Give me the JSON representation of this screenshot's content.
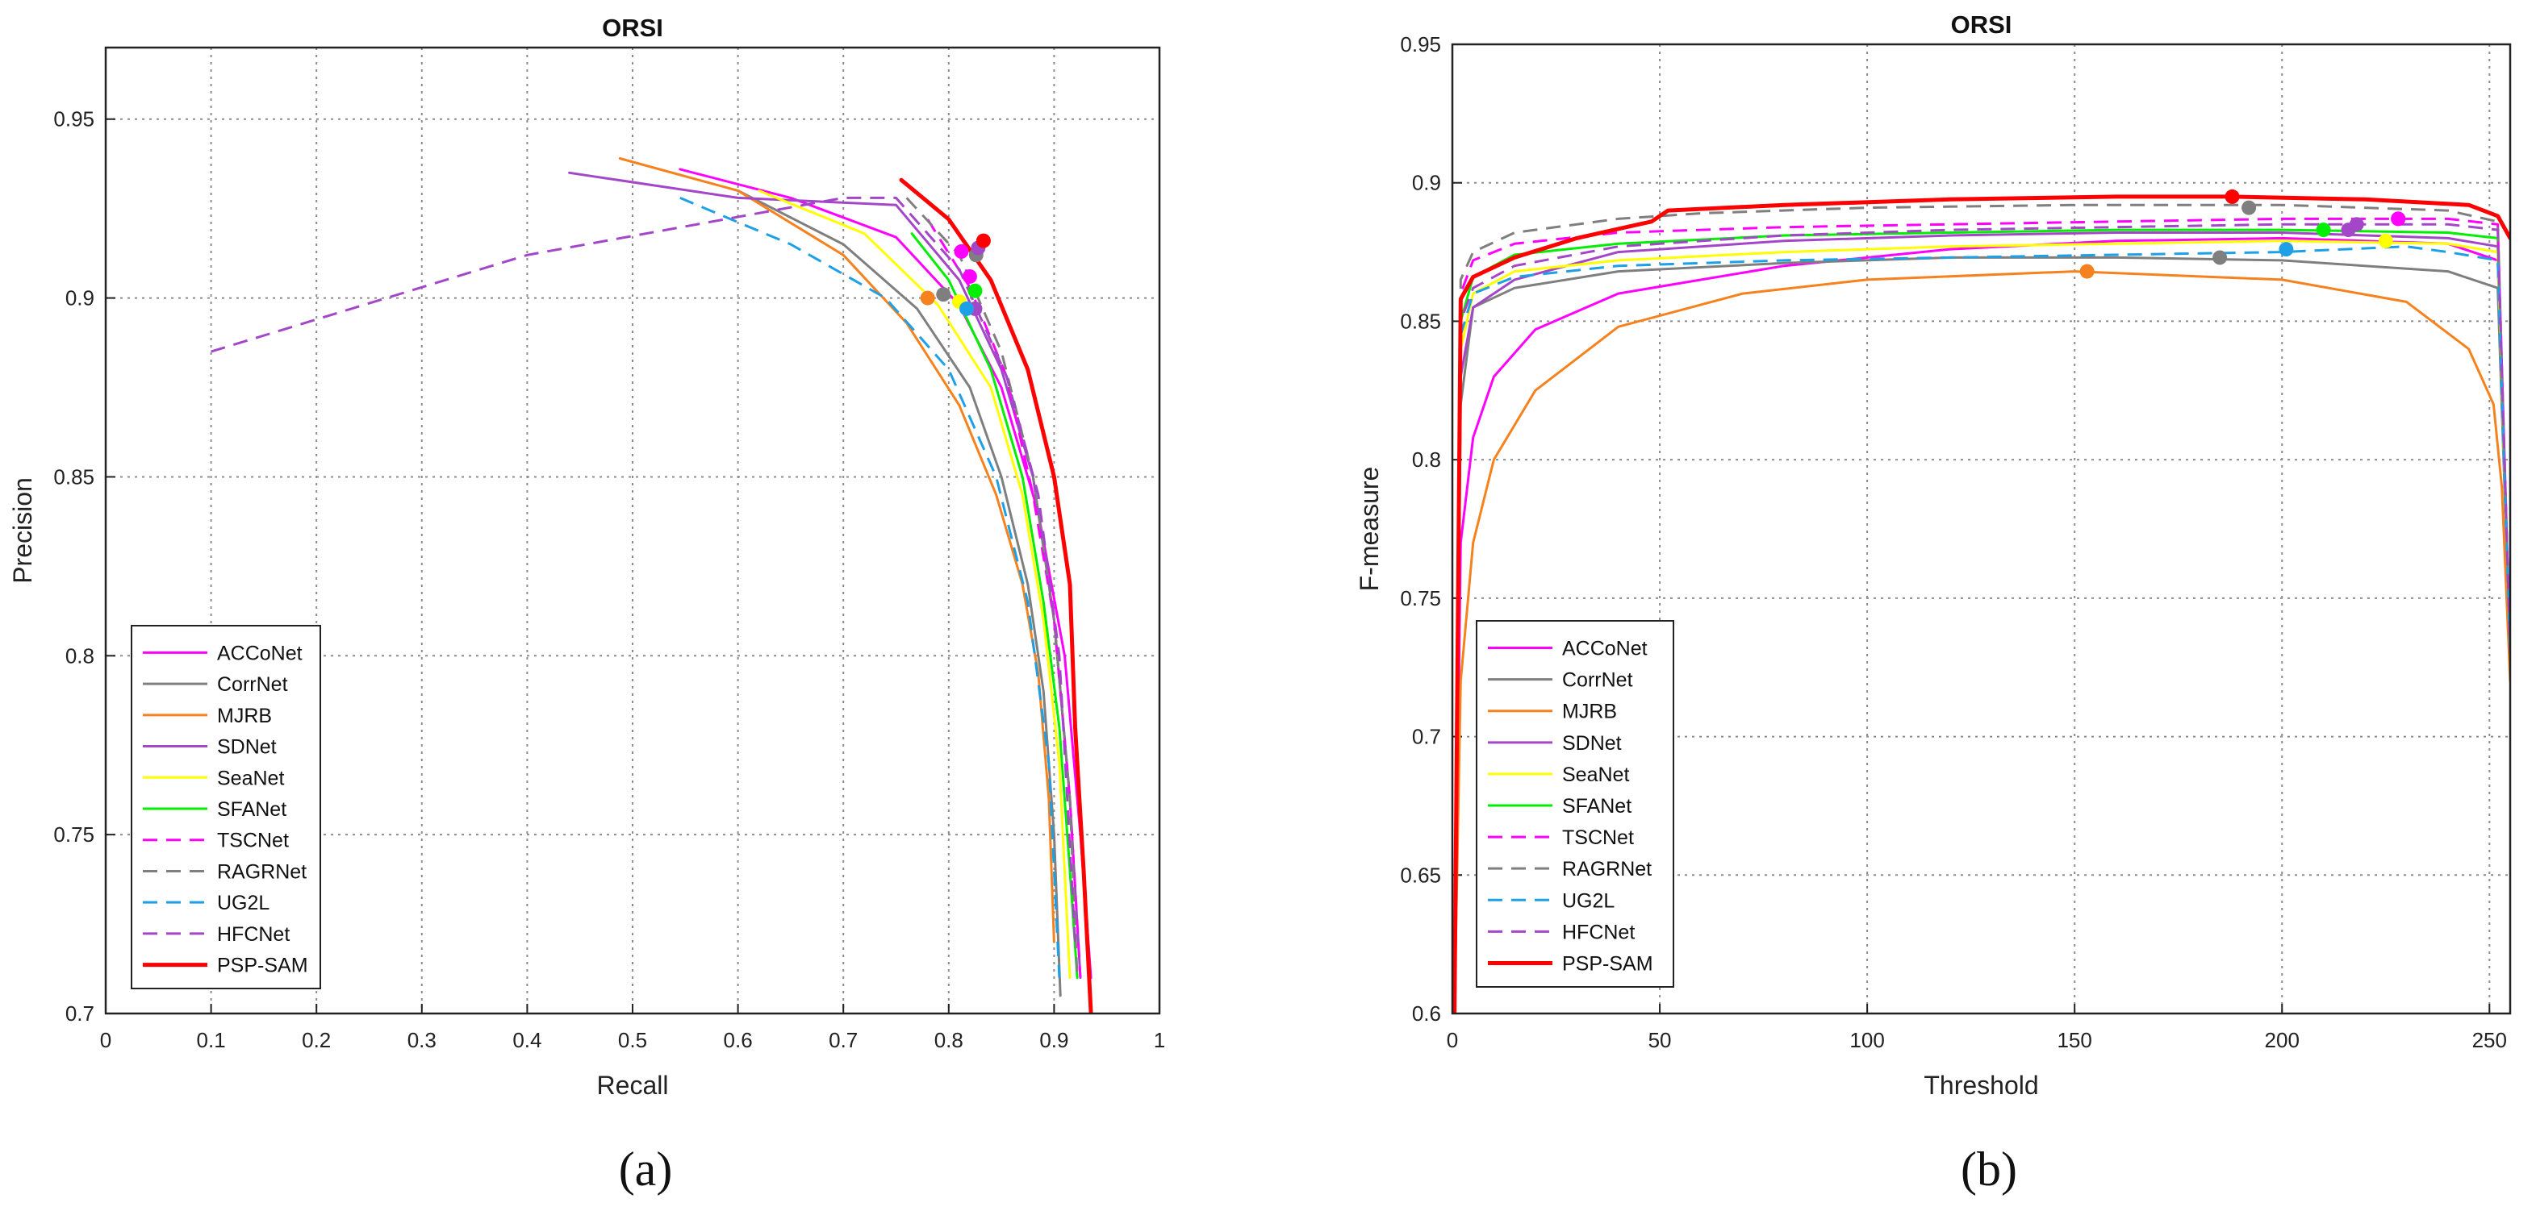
{
  "chart_data": [
    {
      "type": "line",
      "panel_label": "(a)",
      "title": "ORSI",
      "xlabel": "Recall",
      "ylabel": "Precision",
      "xlim": [
        0,
        1
      ],
      "ylim": [
        0.7,
        0.97
      ],
      "xticks": [
        "0",
        "0.1",
        "0.2",
        "0.3",
        "0.4",
        "0.5",
        "0.6",
        "0.7",
        "0.8",
        "0.9",
        "1"
      ],
      "yticks": [
        "0.7",
        "0.75",
        "0.8",
        "0.85",
        "0.9",
        "0.95"
      ],
      "grid": true,
      "legend_position": "bottom-left",
      "series": [
        {
          "name": "ACCoNet",
          "color": "#ff00ff",
          "dash": "solid",
          "width": 3,
          "x": [
            0.545,
            0.65,
            0.75,
            0.81,
            0.85,
            0.885,
            0.91,
            0.925,
            0.935
          ],
          "y": [
            0.936,
            0.928,
            0.917,
            0.898,
            0.875,
            0.84,
            0.8,
            0.75,
            0.71
          ],
          "marker": [
            0.812,
            0.913
          ]
        },
        {
          "name": "CorrNet",
          "color": "#7f7f7f",
          "dash": "solid",
          "width": 3,
          "x": [
            0.6,
            0.7,
            0.77,
            0.82,
            0.85,
            0.875,
            0.89,
            0.9,
            0.906
          ],
          "y": [
            0.93,
            0.915,
            0.897,
            0.875,
            0.85,
            0.82,
            0.79,
            0.75,
            0.705
          ],
          "marker": [
            0.795,
            0.901
          ]
        },
        {
          "name": "MJRB",
          "color": "#f5821f",
          "dash": "solid",
          "width": 3,
          "x": [
            0.488,
            0.6,
            0.7,
            0.76,
            0.81,
            0.845,
            0.87,
            0.885,
            0.895,
            0.9
          ],
          "y": [
            0.939,
            0.93,
            0.912,
            0.893,
            0.87,
            0.845,
            0.82,
            0.795,
            0.76,
            0.72
          ],
          "marker": [
            0.78,
            0.9
          ]
        },
        {
          "name": "SDNet",
          "color": "#a347c8",
          "dash": "solid",
          "width": 3,
          "x": [
            0.44,
            0.6,
            0.75,
            0.81,
            0.85,
            0.88,
            0.9,
            0.915,
            0.925
          ],
          "y": [
            0.935,
            0.928,
            0.926,
            0.905,
            0.88,
            0.85,
            0.81,
            0.76,
            0.71
          ],
          "marker": [
            0.825,
            0.897
          ]
        },
        {
          "name": "SeaNet",
          "color": "#ffff00",
          "dash": "solid",
          "width": 3,
          "x": [
            0.62,
            0.72,
            0.79,
            0.84,
            0.87,
            0.89,
            0.905,
            0.915
          ],
          "y": [
            0.93,
            0.918,
            0.898,
            0.875,
            0.845,
            0.81,
            0.77,
            0.71
          ],
          "marker": [
            0.81,
            0.899
          ]
        },
        {
          "name": "SFANet",
          "color": "#00ee00",
          "dash": "solid",
          "width": 3,
          "x": [
            0.765,
            0.8,
            0.84,
            0.87,
            0.89,
            0.905,
            0.915,
            0.922
          ],
          "y": [
            0.918,
            0.905,
            0.88,
            0.85,
            0.815,
            0.78,
            0.74,
            0.71
          ],
          "marker": [
            0.825,
            0.902
          ]
        },
        {
          "name": "TSCNet",
          "color": "#ff00ff",
          "dash": "dashed",
          "width": 3,
          "x": [
            0.78,
            0.82,
            0.855,
            0.88,
            0.9,
            0.915,
            0.925
          ],
          "y": [
            0.922,
            0.903,
            0.878,
            0.845,
            0.81,
            0.76,
            0.71
          ],
          "marker": [
            0.82,
            0.906
          ]
        },
        {
          "name": "RAGRNet",
          "color": "#7f7f7f",
          "dash": "dashed",
          "width": 3,
          "x": [
            0.76,
            0.81,
            0.85,
            0.88,
            0.9,
            0.915,
            0.922
          ],
          "y": [
            0.928,
            0.912,
            0.885,
            0.85,
            0.81,
            0.76,
            0.71
          ],
          "marker": [
            0.826,
            0.912
          ]
        },
        {
          "name": "UG2L",
          "color": "#1ea0e6",
          "dash": "dashed",
          "width": 3,
          "x": [
            0.545,
            0.65,
            0.74,
            0.8,
            0.845,
            0.875,
            0.895,
            0.905
          ],
          "y": [
            0.928,
            0.915,
            0.9,
            0.88,
            0.85,
            0.815,
            0.77,
            0.71
          ],
          "marker": [
            0.817,
            0.897
          ]
        },
        {
          "name": "HFCNet",
          "color": "#a347c8",
          "dash": "dashed",
          "width": 3,
          "x": [
            0.1,
            0.4,
            0.7,
            0.75,
            0.81,
            0.855,
            0.885,
            0.905,
            0.92
          ],
          "y": [
            0.885,
            0.912,
            0.928,
            0.928,
            0.908,
            0.878,
            0.845,
            0.8,
            0.72
          ],
          "marker": [
            0.828,
            0.914
          ]
        },
        {
          "name": "PSP-SAM",
          "color": "#ff0000",
          "dash": "solid",
          "width": 5,
          "x": [
            0.755,
            0.8,
            0.84,
            0.875,
            0.9,
            0.915,
            0.92,
            0.928,
            0.935
          ],
          "y": [
            0.933,
            0.922,
            0.905,
            0.88,
            0.85,
            0.82,
            0.78,
            0.74,
            0.7
          ],
          "marker": [
            0.833,
            0.916
          ]
        }
      ]
    },
    {
      "type": "line",
      "panel_label": "(b)",
      "title": "ORSI",
      "xlabel": "Threshold",
      "ylabel": "F-measure",
      "xlim": [
        0,
        255
      ],
      "ylim": [
        0.6,
        0.95
      ],
      "xticks": [
        "0",
        "50",
        "100",
        "150",
        "200",
        "250"
      ],
      "yticks": [
        "0.6",
        "0.65",
        "0.7",
        "0.75",
        "0.8",
        "0.85",
        "0.9",
        "0.95"
      ],
      "grid": true,
      "legend_position": "bottom-left",
      "series": [
        {
          "name": "ACCoNet",
          "color": "#ff00ff",
          "dash": "solid",
          "width": 3,
          "x": [
            0.5,
            2,
            5,
            10,
            20,
            40,
            80,
            120,
            160,
            200,
            240,
            252,
            255
          ],
          "y": [
            0.6,
            0.77,
            0.808,
            0.83,
            0.847,
            0.86,
            0.87,
            0.876,
            0.879,
            0.88,
            0.878,
            0.872,
            0.73
          ],
          "marker": [
            228,
            0.887
          ]
        },
        {
          "name": "CorrNet",
          "color": "#7f7f7f",
          "dash": "solid",
          "width": 3,
          "x": [
            0.5,
            2,
            5,
            15,
            40,
            80,
            120,
            160,
            200,
            240,
            252,
            255
          ],
          "y": [
            0.6,
            0.82,
            0.855,
            0.862,
            0.868,
            0.871,
            0.873,
            0.873,
            0.872,
            0.868,
            0.862,
            0.73
          ],
          "marker": [
            185,
            0.873
          ]
        },
        {
          "name": "MJRB",
          "color": "#f5821f",
          "dash": "solid",
          "width": 3,
          "x": [
            0.5,
            2,
            5,
            10,
            20,
            40,
            70,
            100,
            150,
            200,
            230,
            245,
            251,
            253,
            255
          ],
          "y": [
            0.6,
            0.72,
            0.77,
            0.8,
            0.825,
            0.848,
            0.86,
            0.865,
            0.868,
            0.865,
            0.857,
            0.84,
            0.82,
            0.79,
            0.72
          ],
          "marker": [
            153,
            0.868
          ]
        },
        {
          "name": "SDNet",
          "color": "#a347c8",
          "dash": "solid",
          "width": 3,
          "x": [
            0.5,
            2,
            5,
            15,
            40,
            80,
            120,
            160,
            200,
            240,
            252,
            255
          ],
          "y": [
            0.6,
            0.83,
            0.855,
            0.865,
            0.875,
            0.879,
            0.881,
            0.882,
            0.882,
            0.88,
            0.877,
            0.73
          ],
          "marker": [
            216,
            0.883
          ]
        },
        {
          "name": "SeaNet",
          "color": "#ffff00",
          "dash": "solid",
          "width": 3,
          "x": [
            0.5,
            2,
            5,
            15,
            40,
            80,
            120,
            160,
            200,
            240,
            252,
            255
          ],
          "y": [
            0.6,
            0.84,
            0.86,
            0.868,
            0.872,
            0.875,
            0.877,
            0.878,
            0.879,
            0.878,
            0.875,
            0.73
          ],
          "marker": [
            225,
            0.879
          ]
        },
        {
          "name": "SFANet",
          "color": "#00ee00",
          "dash": "solid",
          "width": 3,
          "x": [
            0.5,
            2,
            5,
            15,
            40,
            80,
            120,
            160,
            200,
            240,
            252,
            255
          ],
          "y": [
            0.6,
            0.85,
            0.866,
            0.874,
            0.878,
            0.881,
            0.882,
            0.883,
            0.883,
            0.882,
            0.88,
            0.73
          ],
          "marker": [
            210,
            0.883
          ]
        },
        {
          "name": "TSCNet",
          "color": "#ff00ff",
          "dash": "dashed",
          "width": 3,
          "x": [
            0.5,
            2,
            5,
            15,
            40,
            80,
            120,
            160,
            200,
            240,
            252,
            255
          ],
          "y": [
            0.6,
            0.86,
            0.872,
            0.878,
            0.882,
            0.884,
            0.885,
            0.886,
            0.887,
            0.887,
            0.885,
            0.73
          ],
          "marker": [
            228,
            0.887
          ]
        },
        {
          "name": "RAGRNet",
          "color": "#7f7f7f",
          "dash": "dashed",
          "width": 3,
          "x": [
            0.5,
            2,
            5,
            15,
            40,
            60,
            100,
            150,
            200,
            240,
            252,
            255
          ],
          "y": [
            0.6,
            0.865,
            0.875,
            0.882,
            0.887,
            0.889,
            0.891,
            0.892,
            0.892,
            0.89,
            0.886,
            0.73
          ],
          "marker": [
            192,
            0.891
          ]
        },
        {
          "name": "UG2L",
          "color": "#1ea0e6",
          "dash": "dashed",
          "width": 3,
          "x": [
            0.5,
            2,
            5,
            15,
            40,
            80,
            120,
            160,
            200,
            230,
            240,
            252,
            255
          ],
          "y": [
            0.6,
            0.845,
            0.86,
            0.866,
            0.87,
            0.872,
            0.873,
            0.874,
            0.875,
            0.877,
            0.875,
            0.872,
            0.73
          ],
          "marker": [
            201,
            0.876
          ]
        },
        {
          "name": "HFCNet",
          "color": "#a347c8",
          "dash": "dashed",
          "width": 3,
          "x": [
            0.5,
            2,
            5,
            15,
            40,
            80,
            120,
            160,
            200,
            240,
            252,
            255
          ],
          "y": [
            0.6,
            0.85,
            0.862,
            0.87,
            0.877,
            0.881,
            0.883,
            0.884,
            0.885,
            0.885,
            0.883,
            0.73
          ],
          "marker": [
            218,
            0.885
          ]
        },
        {
          "name": "PSP-SAM",
          "color": "#ff0000",
          "dash": "solid",
          "width": 5,
          "x": [
            0.5,
            2,
            5,
            15,
            30,
            48,
            52,
            80,
            120,
            160,
            188,
            220,
            245,
            252,
            255
          ],
          "y": [
            0.6,
            0.858,
            0.866,
            0.873,
            0.88,
            0.886,
            0.89,
            0.892,
            0.894,
            0.895,
            0.895,
            0.894,
            0.892,
            0.888,
            0.88
          ],
          "marker": [
            188,
            0.895
          ]
        }
      ]
    }
  ]
}
